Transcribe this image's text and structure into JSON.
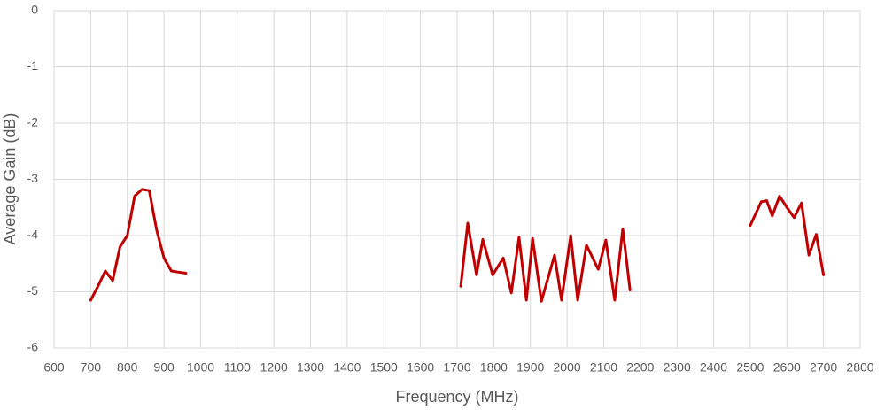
{
  "chart_data": {
    "type": "line",
    "x_label": "Frequency (MHz)",
    "y_label": "Average Gain (dB)",
    "xlim": [
      600,
      2800
    ],
    "xticks": [
      600,
      700,
      800,
      900,
      1000,
      1100,
      1200,
      1300,
      1400,
      1500,
      1600,
      1700,
      1800,
      1900,
      2000,
      2100,
      2200,
      2300,
      2400,
      2500,
      2600,
      2700,
      2800
    ],
    "ylim": [
      -6,
      0
    ],
    "yticks": [
      0,
      -1,
      -2,
      -3,
      -4,
      -5,
      -6
    ],
    "grid": true,
    "series": [
      {
        "color": "#c00000",
        "x": [
          700,
          720,
          740,
          760,
          780,
          800,
          820,
          840,
          860,
          880,
          900,
          920,
          940,
          960,
          null,
          1710,
          1729,
          1753,
          1770,
          1797,
          1826,
          1848,
          1869,
          1889,
          1906,
          1930,
          1966,
          1985,
          2010,
          2029,
          2053,
          2085,
          2106,
          2130,
          2152,
          2172,
          null,
          2500,
          2530,
          2545,
          2560,
          2580,
          2600,
          2620,
          2640,
          2660,
          2680,
          2700
        ],
        "values": [
          -5.15,
          -4.9,
          -4.63,
          -4.8,
          -4.2,
          -4.0,
          -3.3,
          -3.18,
          -3.2,
          -3.9,
          -4.4,
          -4.63,
          -4.65,
          -4.67,
          null,
          -4.9,
          -3.78,
          -4.7,
          -4.07,
          -4.7,
          -4.4,
          -5.02,
          -4.03,
          -5.15,
          -4.05,
          -5.17,
          -4.35,
          -5.15,
          -4.0,
          -5.15,
          -4.17,
          -4.6,
          -4.08,
          -5.15,
          -3.88,
          -4.97,
          null,
          -3.82,
          -3.4,
          -3.38,
          -3.65,
          -3.3,
          -3.5,
          -3.68,
          -3.42,
          -4.35,
          -3.98,
          -4.7
        ]
      }
    ]
  }
}
